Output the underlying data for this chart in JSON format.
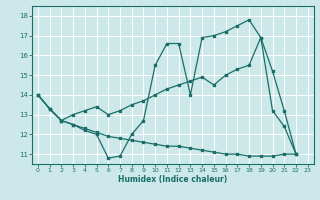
{
  "xlabel": "Humidex (Indice chaleur)",
  "xlim": [
    -0.5,
    23.5
  ],
  "ylim": [
    10.5,
    18.5
  ],
  "yticks": [
    11,
    12,
    13,
    14,
    15,
    16,
    17,
    18
  ],
  "xticks": [
    0,
    1,
    2,
    3,
    4,
    5,
    6,
    7,
    8,
    9,
    10,
    11,
    12,
    13,
    14,
    15,
    16,
    17,
    18,
    19,
    20,
    21,
    22,
    23
  ],
  "bg_color": "#cce8e8",
  "line_color": "#1a6e6a",
  "grid_color": "#ffffff",
  "line1_x": [
    0,
    1,
    2,
    3,
    4,
    5,
    6,
    7,
    8,
    9,
    10,
    11,
    12,
    13,
    14,
    15,
    16,
    17,
    18,
    19,
    20,
    21,
    22
  ],
  "line1_y": [
    14.0,
    13.3,
    12.7,
    12.5,
    12.2,
    12.0,
    10.8,
    10.9,
    12.0,
    12.7,
    15.5,
    16.6,
    16.6,
    14.0,
    16.9,
    17.0,
    17.2,
    17.5,
    17.8,
    16.9,
    13.2,
    12.4,
    11.0
  ],
  "line2_x": [
    0,
    1,
    2,
    3,
    4,
    5,
    6,
    7,
    8,
    9,
    10,
    11,
    12,
    13,
    14,
    15,
    16,
    17,
    18,
    19,
    20,
    21,
    22
  ],
  "line2_y": [
    14.0,
    13.3,
    12.7,
    13.0,
    13.2,
    13.4,
    13.0,
    13.2,
    13.5,
    13.7,
    14.0,
    14.3,
    14.5,
    14.7,
    14.9,
    14.5,
    15.0,
    15.3,
    15.5,
    16.9,
    15.2,
    13.2,
    11.0
  ],
  "line3_x": [
    0,
    1,
    2,
    3,
    4,
    5,
    6,
    7,
    8,
    9,
    10,
    11,
    12,
    13,
    14,
    15,
    16,
    17,
    18,
    19,
    20,
    21,
    22
  ],
  "line3_y": [
    14.0,
    13.3,
    12.7,
    12.5,
    12.3,
    12.1,
    11.9,
    11.8,
    11.7,
    11.6,
    11.5,
    11.4,
    11.4,
    11.3,
    11.2,
    11.1,
    11.0,
    11.0,
    10.9,
    10.9,
    10.9,
    11.0,
    11.0
  ]
}
